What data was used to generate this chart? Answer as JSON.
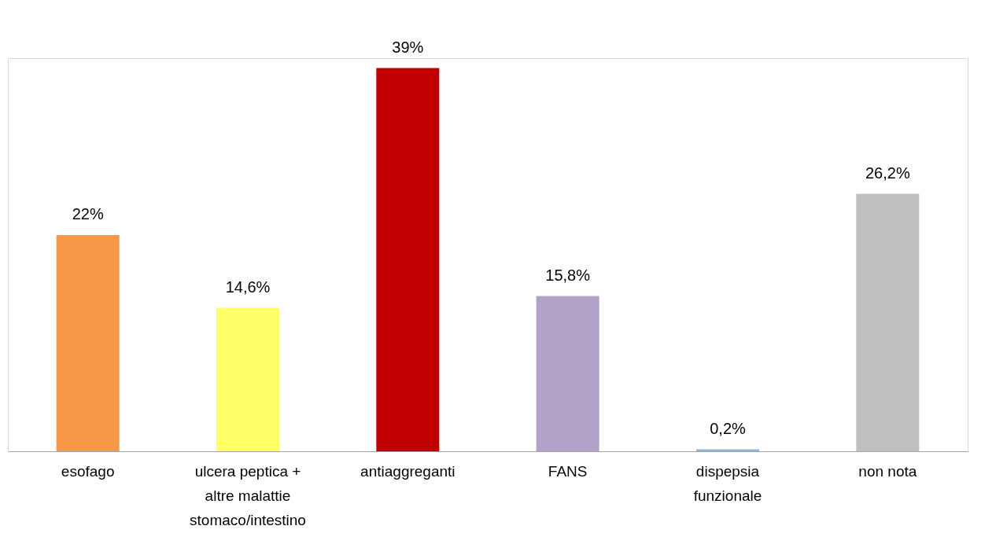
{
  "chart_data": {
    "type": "bar",
    "categories": [
      "esofago",
      "ulcera peptica +\naltre malattie\nstomaco/intestino",
      "antiaggreganti",
      "FANS",
      "dispepsia\nfunzionale",
      "non nota"
    ],
    "values": [
      22,
      14.6,
      39,
      15.8,
      0.2,
      26.2
    ],
    "colors": [
      "#f79646",
      "#ffff66",
      "#c00000",
      "#b3a2c7",
      "#95b3d7",
      "#bfbfbf"
    ],
    "value_labels": [
      "22%",
      "14,6%",
      "39%",
      "15,8%",
      "0,2%",
      "26,2%"
    ]
  }
}
